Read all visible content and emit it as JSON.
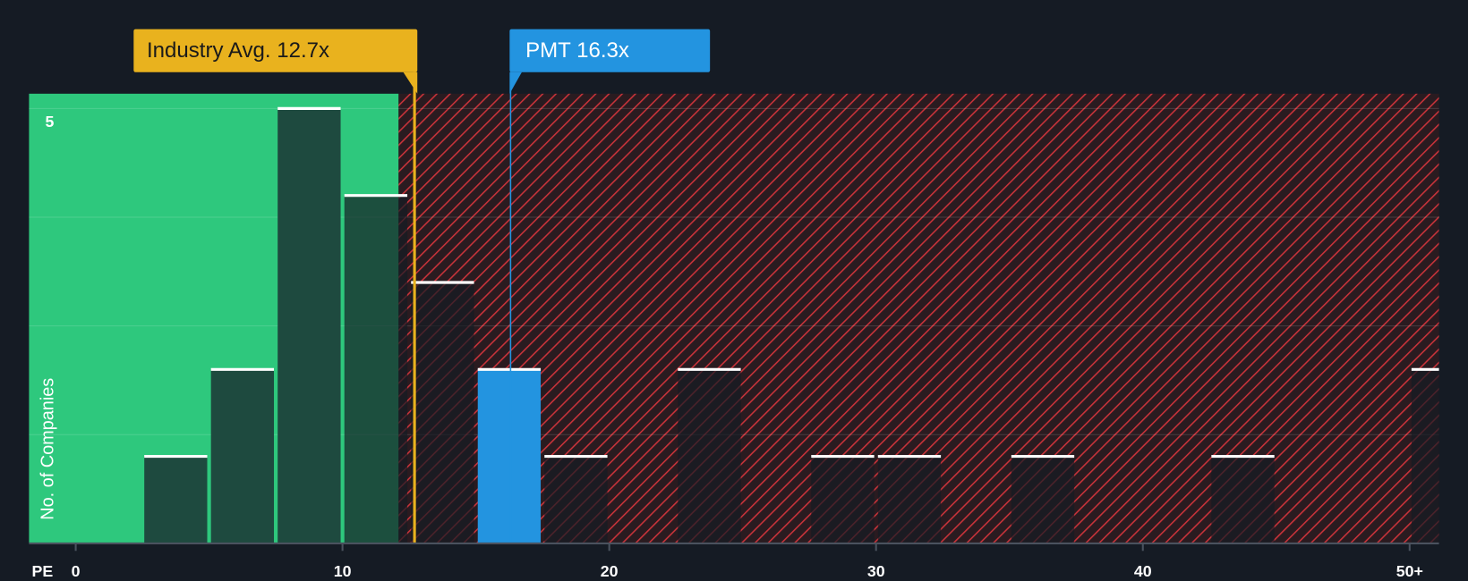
{
  "chart_data": {
    "type": "histogram",
    "x_label": "PE",
    "y_label": "No. of Companies",
    "bins": [
      2.5,
      5,
      7.5,
      10,
      12.5,
      15,
      17.5,
      20,
      22.5,
      25,
      27.5,
      30,
      32.5,
      35,
      37.5,
      40,
      42.5,
      45,
      47.5,
      50,
      52.5
    ],
    "counts": [
      1,
      2,
      5,
      4,
      3,
      2,
      1,
      0,
      2,
      0,
      1,
      1,
      0,
      1,
      0,
      0,
      1,
      0,
      0,
      2
    ],
    "color": "#1e4a3f",
    "highlight_bin": 5,
    "highlight_color": "#2394e0",
    "xlim": [
      -1.75,
      51.1
    ],
    "ylim": [
      0,
      5.17
    ],
    "xticks": [
      0,
      10,
      20,
      30,
      40,
      {
        "value": 50,
        "label": "50+"
      }
    ],
    "yticks": [
      5
    ],
    "grid_lines": [
      1.25,
      2.5,
      3.75,
      5
    ],
    "annotations": [
      {
        "value": 12.7,
        "label": "Industry Avg. 12.7x",
        "color": "#e9b21e"
      },
      {
        "value": 16.3,
        "label": "PMT 16.3x",
        "color": "#2394e0"
      }
    ]
  }
}
